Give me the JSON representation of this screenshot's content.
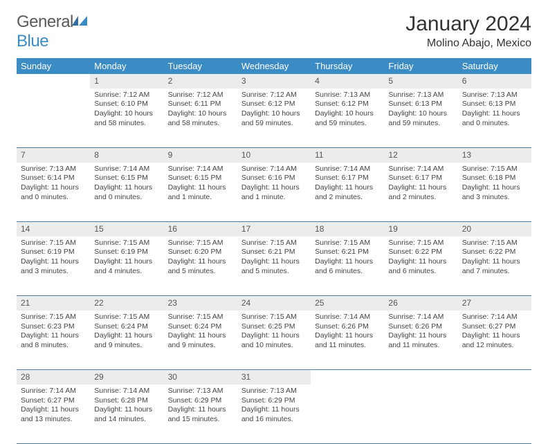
{
  "logo": {
    "part1": "General",
    "part2": "Blue"
  },
  "title": "January 2024",
  "location": "Molino Abajo, Mexico",
  "colors": {
    "header_bg": "#3b8bc4",
    "header_text": "#ffffff",
    "daynum_bg": "#ececec",
    "row_divider": "#4a7a9c",
    "body_text": "#444444",
    "logo_gray": "#5a5a5a",
    "logo_blue": "#3b8bc4"
  },
  "typography": {
    "title_fontsize": 30,
    "location_fontsize": 16,
    "weekday_fontsize": 13,
    "daynum_fontsize": 12,
    "detail_fontsize": 10.5
  },
  "weekdays": [
    "Sunday",
    "Monday",
    "Tuesday",
    "Wednesday",
    "Thursday",
    "Friday",
    "Saturday"
  ],
  "weeks": [
    {
      "nums": [
        "",
        "1",
        "2",
        "3",
        "4",
        "5",
        "6"
      ],
      "details": [
        "",
        "Sunrise: 7:12 AM\nSunset: 6:10 PM\nDaylight: 10 hours and 58 minutes.",
        "Sunrise: 7:12 AM\nSunset: 6:11 PM\nDaylight: 10 hours and 58 minutes.",
        "Sunrise: 7:12 AM\nSunset: 6:12 PM\nDaylight: 10 hours and 59 minutes.",
        "Sunrise: 7:13 AM\nSunset: 6:12 PM\nDaylight: 10 hours and 59 minutes.",
        "Sunrise: 7:13 AM\nSunset: 6:13 PM\nDaylight: 10 hours and 59 minutes.",
        "Sunrise: 7:13 AM\nSunset: 6:13 PM\nDaylight: 11 hours and 0 minutes."
      ]
    },
    {
      "nums": [
        "7",
        "8",
        "9",
        "10",
        "11",
        "12",
        "13"
      ],
      "details": [
        "Sunrise: 7:13 AM\nSunset: 6:14 PM\nDaylight: 11 hours and 0 minutes.",
        "Sunrise: 7:14 AM\nSunset: 6:15 PM\nDaylight: 11 hours and 0 minutes.",
        "Sunrise: 7:14 AM\nSunset: 6:15 PM\nDaylight: 11 hours and 1 minute.",
        "Sunrise: 7:14 AM\nSunset: 6:16 PM\nDaylight: 11 hours and 1 minute.",
        "Sunrise: 7:14 AM\nSunset: 6:17 PM\nDaylight: 11 hours and 2 minutes.",
        "Sunrise: 7:14 AM\nSunset: 6:17 PM\nDaylight: 11 hours and 2 minutes.",
        "Sunrise: 7:15 AM\nSunset: 6:18 PM\nDaylight: 11 hours and 3 minutes."
      ]
    },
    {
      "nums": [
        "14",
        "15",
        "16",
        "17",
        "18",
        "19",
        "20"
      ],
      "details": [
        "Sunrise: 7:15 AM\nSunset: 6:19 PM\nDaylight: 11 hours and 3 minutes.",
        "Sunrise: 7:15 AM\nSunset: 6:19 PM\nDaylight: 11 hours and 4 minutes.",
        "Sunrise: 7:15 AM\nSunset: 6:20 PM\nDaylight: 11 hours and 5 minutes.",
        "Sunrise: 7:15 AM\nSunset: 6:21 PM\nDaylight: 11 hours and 5 minutes.",
        "Sunrise: 7:15 AM\nSunset: 6:21 PM\nDaylight: 11 hours and 6 minutes.",
        "Sunrise: 7:15 AM\nSunset: 6:22 PM\nDaylight: 11 hours and 6 minutes.",
        "Sunrise: 7:15 AM\nSunset: 6:22 PM\nDaylight: 11 hours and 7 minutes."
      ]
    },
    {
      "nums": [
        "21",
        "22",
        "23",
        "24",
        "25",
        "26",
        "27"
      ],
      "details": [
        "Sunrise: 7:15 AM\nSunset: 6:23 PM\nDaylight: 11 hours and 8 minutes.",
        "Sunrise: 7:15 AM\nSunset: 6:24 PM\nDaylight: 11 hours and 9 minutes.",
        "Sunrise: 7:15 AM\nSunset: 6:24 PM\nDaylight: 11 hours and 9 minutes.",
        "Sunrise: 7:15 AM\nSunset: 6:25 PM\nDaylight: 11 hours and 10 minutes.",
        "Sunrise: 7:14 AM\nSunset: 6:26 PM\nDaylight: 11 hours and 11 minutes.",
        "Sunrise: 7:14 AM\nSunset: 6:26 PM\nDaylight: 11 hours and 11 minutes.",
        "Sunrise: 7:14 AM\nSunset: 6:27 PM\nDaylight: 11 hours and 12 minutes."
      ]
    },
    {
      "nums": [
        "28",
        "29",
        "30",
        "31",
        "",
        "",
        ""
      ],
      "details": [
        "Sunrise: 7:14 AM\nSunset: 6:27 PM\nDaylight: 11 hours and 13 minutes.",
        "Sunrise: 7:14 AM\nSunset: 6:28 PM\nDaylight: 11 hours and 14 minutes.",
        "Sunrise: 7:13 AM\nSunset: 6:29 PM\nDaylight: 11 hours and 15 minutes.",
        "Sunrise: 7:13 AM\nSunset: 6:29 PM\nDaylight: 11 hours and 16 minutes.",
        "",
        "",
        ""
      ]
    }
  ]
}
